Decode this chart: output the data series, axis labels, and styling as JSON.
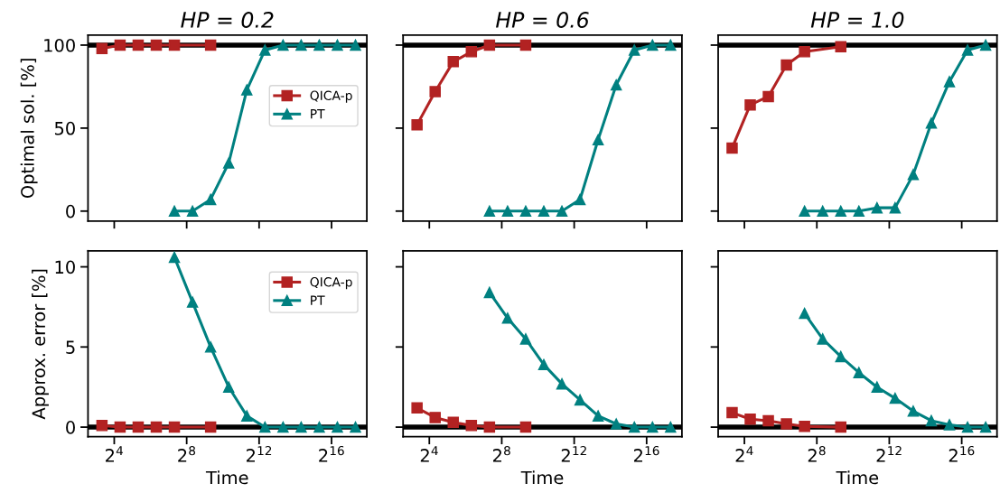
{
  "chart_data": [
    {
      "type": "line",
      "title": "HP = 0.2",
      "ylabel": "Optimal sol. [%]",
      "log": "x",
      "xlim": [
        5.86,
        253000
      ],
      "xticks": [
        {
          "value": 16,
          "label": null
        },
        {
          "value": 256,
          "label": null
        },
        {
          "value": 4096,
          "label": null
        },
        {
          "value": 65536,
          "label": null
        }
      ],
      "ylim": [
        -6,
        106
      ],
      "yticks": [
        0,
        50,
        100
      ],
      "tick_labels": "y",
      "legend": "right",
      "grid": false,
      "line_style": "solid",
      "ref_lines": [
        {
          "axis": "y",
          "value": 100,
          "color": "#000000"
        }
      ],
      "series": [
        {
          "name": "QICA-p",
          "color": "#b22222",
          "marker": "square",
          "x": [
            10,
            20,
            40,
            80,
            160,
            640
          ],
          "values": [
            98,
            100,
            100,
            100,
            100,
            100
          ]
        },
        {
          "name": "PT",
          "color": "#008080",
          "marker": "triangle",
          "x": [
            160,
            320,
            640,
            1280,
            2560,
            5120,
            10240,
            20480,
            40960,
            81920,
            163840
          ],
          "values": [
            0,
            0,
            7,
            29,
            73,
            97,
            100,
            100,
            100,
            100,
            100
          ]
        }
      ]
    },
    {
      "type": "line",
      "title": "HP = 0.6",
      "log": "x",
      "xlim": [
        5.86,
        253000
      ],
      "xticks": [
        {
          "value": 16,
          "label": null
        },
        {
          "value": 256,
          "label": null
        },
        {
          "value": 4096,
          "label": null
        },
        {
          "value": 65536,
          "label": null
        }
      ],
      "ylim": [
        -6,
        106
      ],
      "yticks": [
        0,
        50,
        100
      ],
      "tick_labels": false,
      "grid": false,
      "line_style": "solid",
      "ref_lines": [
        {
          "axis": "y",
          "value": 100,
          "color": "#000000"
        }
      ],
      "series": [
        {
          "color": "#b22222",
          "marker": "square",
          "x": [
            10,
            20,
            40,
            80,
            160,
            640
          ],
          "values": [
            52,
            72,
            90,
            96,
            100,
            100
          ]
        },
        {
          "color": "#008080",
          "marker": "triangle",
          "x": [
            160,
            320,
            640,
            1280,
            2560,
            5120,
            10240,
            20480,
            40960,
            81920,
            163840
          ],
          "values": [
            0,
            0,
            0,
            0,
            0,
            7,
            43,
            76,
            97,
            100,
            100
          ]
        }
      ]
    },
    {
      "type": "line",
      "title": "HP = 1.0",
      "log": "x",
      "xlim": [
        5.86,
        253000
      ],
      "xticks": [
        {
          "value": 16,
          "label": null
        },
        {
          "value": 256,
          "label": null
        },
        {
          "value": 4096,
          "label": null
        },
        {
          "value": 65536,
          "label": null
        }
      ],
      "ylim": [
        -6,
        106
      ],
      "yticks": [
        0,
        50,
        100
      ],
      "tick_labels": false,
      "grid": false,
      "line_style": "solid",
      "ref_lines": [
        {
          "axis": "y",
          "value": 100,
          "color": "#000000"
        }
      ],
      "series": [
        {
          "color": "#b22222",
          "marker": "square",
          "x": [
            10,
            20,
            40,
            80,
            160,
            640
          ],
          "values": [
            38,
            64,
            69,
            88,
            96,
            99
          ]
        },
        {
          "color": "#008080",
          "marker": "triangle",
          "x": [
            160,
            320,
            640,
            1280,
            2560,
            5120,
            10240,
            20480,
            40960,
            81920,
            163840
          ],
          "values": [
            0,
            0,
            0,
            0,
            2,
            2,
            22,
            53,
            78,
            97,
            100
          ]
        }
      ]
    },
    {
      "type": "line",
      "xlabel": "Time",
      "ylabel": "Approx. error [%]",
      "log": "x",
      "xlim": [
        5.86,
        253000
      ],
      "xticks": [
        {
          "value": 16,
          "label": "2$^{4}$"
        },
        {
          "value": 256,
          "label": "2$^{8}$"
        },
        {
          "value": 4096,
          "label": "2$^{12}$"
        },
        {
          "value": 65536,
          "label": "2$^{16}$"
        }
      ],
      "ylim": [
        -0.6,
        11
      ],
      "yticks": [
        0,
        5,
        10
      ],
      "legend": "top right",
      "grid": false,
      "line_style": "solid",
      "ref_lines": [
        {
          "axis": "y",
          "value": 0,
          "color": "#000000"
        }
      ],
      "series": [
        {
          "name": "QICA-p",
          "color": "#b22222",
          "marker": "square",
          "x": [
            10,
            20,
            40,
            80,
            160,
            640
          ],
          "values": [
            0.1,
            0,
            0,
            0,
            0,
            0
          ]
        },
        {
          "name": "PT",
          "color": "#008080",
          "marker": "triangle",
          "x": [
            160,
            320,
            640,
            1280,
            2560,
            5120,
            10240,
            20480,
            40960,
            81920,
            163840
          ],
          "values": [
            10.6,
            7.8,
            5.0,
            2.5,
            0.7,
            0,
            0,
            0,
            0,
            0,
            0
          ]
        }
      ]
    },
    {
      "type": "line",
      "xlabel": "Time",
      "log": "x",
      "xlim": [
        5.86,
        253000
      ],
      "xticks": [
        {
          "value": 16,
          "label": "2$^{4}$"
        },
        {
          "value": 256,
          "label": "2$^{8}$"
        },
        {
          "value": 4096,
          "label": "2$^{12}$"
        },
        {
          "value": 65536,
          "label": "2$^{16}$"
        }
      ],
      "ylim": [
        -0.6,
        11
      ],
      "yticks": [
        0,
        5,
        10
      ],
      "tick_labels": "x",
      "grid": false,
      "line_style": "solid",
      "ref_lines": [
        {
          "axis": "y",
          "value": 0,
          "color": "#000000"
        }
      ],
      "series": [
        {
          "color": "#b22222",
          "marker": "square",
          "x": [
            10,
            20,
            40,
            80,
            160,
            640
          ],
          "values": [
            1.2,
            0.6,
            0.3,
            0.1,
            0,
            0
          ]
        },
        {
          "color": "#008080",
          "marker": "triangle",
          "x": [
            160,
            320,
            640,
            1280,
            2560,
            5120,
            10240,
            20480,
            40960,
            81920,
            163840
          ],
          "values": [
            8.4,
            6.8,
            5.5,
            3.9,
            2.7,
            1.7,
            0.7,
            0.2,
            0,
            0,
            0
          ]
        }
      ]
    },
    {
      "type": "line",
      "xlabel": "Time",
      "log": "x",
      "xlim": [
        5.86,
        253000
      ],
      "xticks": [
        {
          "value": 16,
          "label": "2$^{4}$"
        },
        {
          "value": 256,
          "label": "2$^{8}$"
        },
        {
          "value": 4096,
          "label": "2$^{12}$"
        },
        {
          "value": 65536,
          "label": "2$^{16}$"
        }
      ],
      "ylim": [
        -0.6,
        11
      ],
      "yticks": [
        0,
        5,
        10
      ],
      "tick_labels": "x",
      "grid": false,
      "line_style": "solid",
      "ref_lines": [
        {
          "axis": "y",
          "value": 0,
          "color": "#000000"
        }
      ],
      "series": [
        {
          "color": "#b22222",
          "marker": "square",
          "x": [
            10,
            20,
            40,
            80,
            160,
            640
          ],
          "values": [
            0.9,
            0.5,
            0.4,
            0.2,
            0.05,
            0
          ]
        },
        {
          "color": "#008080",
          "marker": "triangle",
          "x": [
            160,
            320,
            640,
            1280,
            2560,
            5120,
            10240,
            20480,
            40960,
            81920,
            163840
          ],
          "values": [
            7.1,
            5.5,
            4.4,
            3.4,
            2.5,
            1.8,
            1.0,
            0.4,
            0.15,
            0,
            0
          ]
        }
      ]
    }
  ]
}
